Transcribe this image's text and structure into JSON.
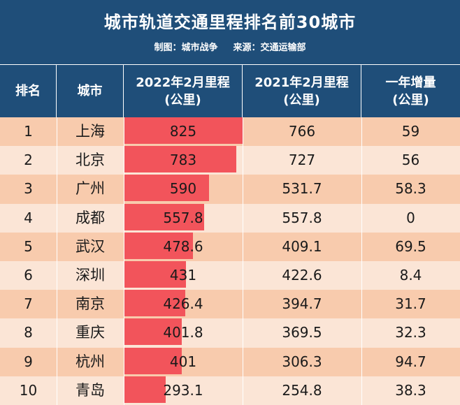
{
  "title": "城市轨道交通里程排名前30城市",
  "credit": {
    "maker_label": "制图：城市战争",
    "source_label": "来源：交通运输部"
  },
  "headers": [
    {
      "line1": "排名",
      "line2": ""
    },
    {
      "line1": "城市",
      "line2": ""
    },
    {
      "line1": "2022年2月里程",
      "line2": "(公里)"
    },
    {
      "line1": "2021年2月里程",
      "line2": "(公里)"
    },
    {
      "line1": "一年增量",
      "line2": "(公里)"
    }
  ],
  "colors": {
    "header_bg": "#1f4e79",
    "row_odd": "#f8cbad",
    "row_even": "#fbe5d6",
    "bar": "#f2545b"
  },
  "chart_data": {
    "type": "table",
    "title": "城市轨道交通里程排名前30城市",
    "columns": [
      "排名",
      "城市",
      "2022年2月里程(公里)",
      "2021年2月里程(公里)",
      "一年增量(公里)"
    ],
    "bar_column": "2022年2月里程(公里)",
    "bar_max": 825,
    "rows": [
      {
        "rank": "1",
        "city": "上海",
        "km_2022": "825",
        "km_2021": "766",
        "increase": "59"
      },
      {
        "rank": "2",
        "city": "北京",
        "km_2022": "783",
        "km_2021": "727",
        "increase": "56"
      },
      {
        "rank": "3",
        "city": "广州",
        "km_2022": "590",
        "km_2021": "531.7",
        "increase": "58.3"
      },
      {
        "rank": "4",
        "city": "成都",
        "km_2022": "557.8",
        "km_2021": "557.8",
        "increase": "0"
      },
      {
        "rank": "5",
        "city": "武汉",
        "km_2022": "478.6",
        "km_2021": "409.1",
        "increase": "69.5"
      },
      {
        "rank": "6",
        "city": "深圳",
        "km_2022": "431",
        "km_2021": "422.6",
        "increase": "8.4"
      },
      {
        "rank": "7",
        "city": "南京",
        "km_2022": "426.4",
        "km_2021": "394.7",
        "increase": "31.7"
      },
      {
        "rank": "8",
        "city": "重庆",
        "km_2022": "401.8",
        "km_2021": "369.5",
        "increase": "32.3"
      },
      {
        "rank": "9",
        "city": "杭州",
        "km_2022": "401",
        "km_2021": "306.3",
        "increase": "94.7"
      },
      {
        "rank": "10",
        "city": "青岛",
        "km_2022": "293.1",
        "km_2021": "254.8",
        "increase": "38.3"
      }
    ]
  }
}
